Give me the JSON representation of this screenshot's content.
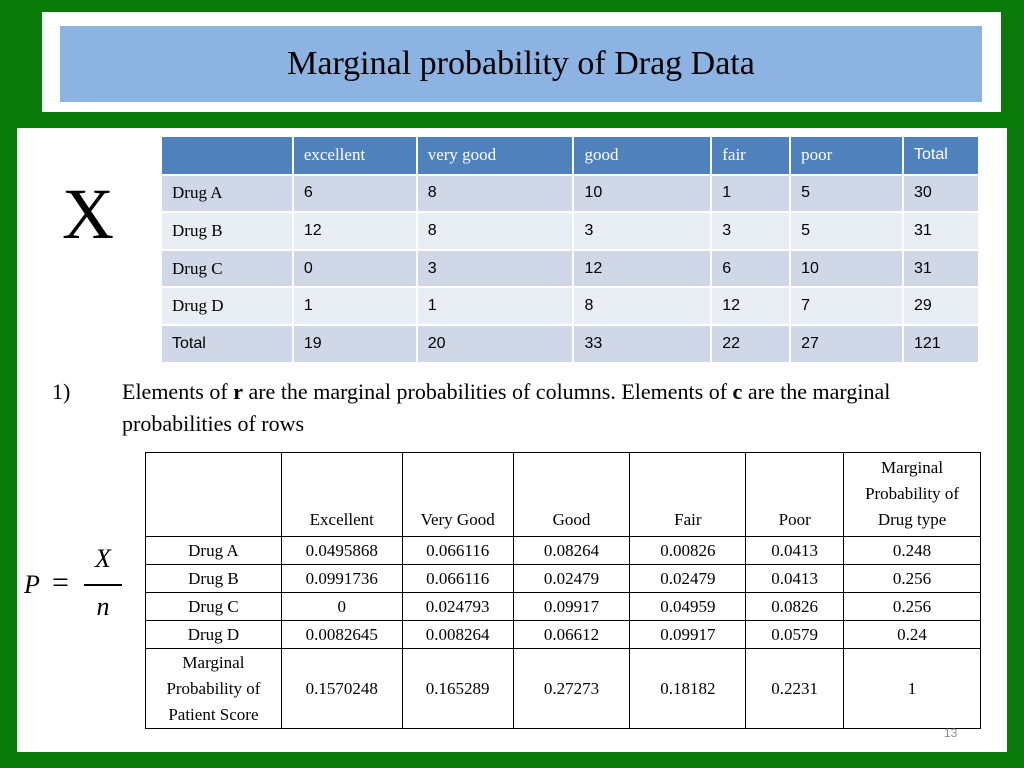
{
  "slide": {
    "title": "Marginal probability of Drag Data",
    "x_symbol": "X",
    "page_number": "13"
  },
  "top_table": {
    "header": [
      "",
      "excellent",
      "very good",
      " good",
      "fair",
      "poor",
      "Total"
    ],
    "rows": [
      [
        "Drug A",
        "6",
        "8",
        "10",
        "1",
        "5",
        "30"
      ],
      [
        "Drug B",
        "12",
        "8",
        "3",
        "3",
        "5",
        "31"
      ],
      [
        "Drug C",
        "0",
        "3",
        "12",
        "6",
        "10",
        "31"
      ],
      [
        "Drug D",
        "1",
        "1",
        "8",
        "12",
        "7",
        "29"
      ],
      [
        "Total",
        "19",
        "20",
        "33",
        "22",
        "27",
        "121"
      ]
    ]
  },
  "bullet": {
    "number": "1)",
    "text_a": "Elements of ",
    "bold_r": "r",
    "text_b": " are the marginal probabilities of columns. Elements of ",
    "bold_c": "c",
    "text_c": " are the marginal probabilities of rows"
  },
  "formula": {
    "lhs": "P",
    "eq": "=",
    "numerator": "X",
    "denominator": "n"
  },
  "bottom_table": {
    "header": [
      "",
      "Excellent",
      "Very Good",
      "Good",
      "Fair",
      "Poor",
      "Marginal Probability of Drug type"
    ],
    "rows": [
      [
        "Drug  A",
        "0.0495868",
        "0.066116",
        "0.08264",
        "0.00826",
        "0.0413",
        "0.248"
      ],
      [
        "Drug  B",
        "0.0991736",
        "0.066116",
        "0.02479",
        "0.02479",
        "0.0413",
        "0.256"
      ],
      [
        "Drug  C",
        "0",
        "0.024793",
        "0.09917",
        "0.04959",
        "0.0826",
        "0.256"
      ],
      [
        "Drug  D",
        "0.0082645",
        "0.008264",
        "0.06612",
        "0.09917",
        "0.0579",
        "0.24"
      ],
      [
        "Marginal Probability of Patient Score",
        "0.1570248",
        "0.165289",
        "0.27273",
        "0.18182",
        "0.2231",
        "1"
      ]
    ]
  }
}
